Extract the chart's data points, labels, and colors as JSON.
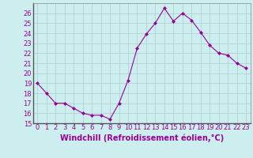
{
  "x": [
    0,
    1,
    2,
    3,
    4,
    5,
    6,
    7,
    8,
    9,
    10,
    11,
    12,
    13,
    14,
    15,
    16,
    17,
    18,
    19,
    20,
    21,
    22,
    23
  ],
  "y": [
    19.0,
    18.0,
    17.0,
    17.0,
    16.5,
    16.0,
    15.8,
    15.8,
    15.4,
    17.0,
    19.3,
    22.5,
    23.9,
    25.0,
    26.5,
    25.2,
    26.0,
    25.3,
    24.1,
    22.8,
    22.0,
    21.8,
    21.0,
    20.5
  ],
  "line_color": "#990099",
  "marker": "D",
  "marker_size": 2,
  "bg_color": "#cceeee",
  "grid_color": "#aacccc",
  "xlabel": "Windchill (Refroidissement éolien,°C)",
  "ylim": [
    15,
    27
  ],
  "yticks": [
    15,
    16,
    17,
    18,
    19,
    20,
    21,
    22,
    23,
    24,
    25,
    26
  ],
  "xticks": [
    0,
    1,
    2,
    3,
    4,
    5,
    6,
    7,
    8,
    9,
    10,
    11,
    12,
    13,
    14,
    15,
    16,
    17,
    18,
    19,
    20,
    21,
    22,
    23
  ],
  "tick_fontsize": 6,
  "xlabel_fontsize": 7,
  "label_color": "#990099"
}
